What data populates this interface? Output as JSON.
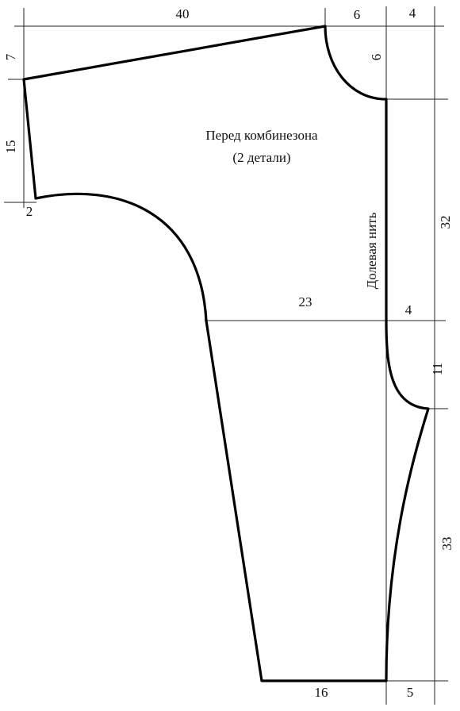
{
  "title": "Перед комбинезона",
  "subtitle": "(2 детали)",
  "grain_line": "Долевая нить",
  "dimensions": [
    "40",
    "6",
    "4",
    "7",
    "6",
    "15",
    "2",
    "32",
    "23",
    "4",
    "11",
    "33",
    "16",
    "5"
  ]
}
